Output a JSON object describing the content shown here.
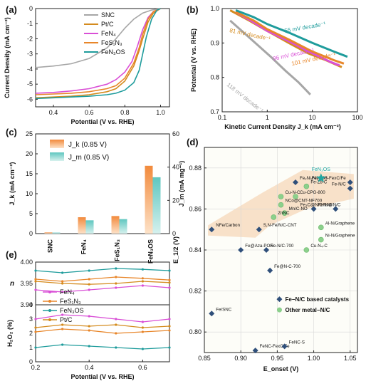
{
  "figure": {
    "panel_labels": [
      "(a)",
      "(b)",
      "(c)",
      "(d)",
      "(e)"
    ]
  },
  "colors": {
    "SNC": "#a6a6a6",
    "PtC": "#d48b1e",
    "FeN4": "#d94fd6",
    "FeS1N3": "#e8862a",
    "FeN3OS": "#1f9c9c",
    "grid": "#d8d8d8",
    "diamond": "#2f4f7a",
    "circle": "#8cd08c",
    "star": "#1fa7a0",
    "region": "#f4c69a"
  },
  "chart_data": [
    {
      "id": "a",
      "type": "line",
      "title": "",
      "xlabel": "Potential (V vs. RHE)",
      "ylabel": "Current Density (mA cm⁻²)",
      "xlim": [
        0.3,
        1.05
      ],
      "ylim": [
        -6.5,
        0
      ],
      "xticks": [
        "0.4",
        "0.6",
        "0.8",
        "1.0"
      ],
      "yticks": [
        "0",
        "-1",
        "-2",
        "-3",
        "-4",
        "-5",
        "-6"
      ],
      "legend": [
        "SNC",
        "Pt/C",
        "FeN₄",
        "FeS₁N₃",
        "FeN₃OS"
      ],
      "legend_position": "top-center",
      "series": [
        {
          "name": "SNC",
          "x": [
            0.3,
            0.4,
            0.5,
            0.6,
            0.7,
            0.75,
            0.8,
            0.85,
            0.9,
            0.95,
            1.0
          ],
          "y": [
            -3.9,
            -3.8,
            -3.65,
            -3.3,
            -2.6,
            -2.0,
            -1.3,
            -0.7,
            -0.3,
            -0.1,
            0.0
          ]
        },
        {
          "name": "Pt/C",
          "x": [
            0.3,
            0.4,
            0.5,
            0.6,
            0.7,
            0.75,
            0.8,
            0.85,
            0.88,
            0.9,
            0.93,
            0.96,
            1.0
          ],
          "y": [
            -5.9,
            -5.85,
            -5.8,
            -5.7,
            -5.5,
            -5.3,
            -4.8,
            -3.8,
            -2.8,
            -2.0,
            -0.9,
            -0.3,
            0.0
          ]
        },
        {
          "name": "FeN₄",
          "x": [
            0.3,
            0.4,
            0.5,
            0.6,
            0.7,
            0.75,
            0.8,
            0.84,
            0.87,
            0.9,
            0.93,
            0.96,
            1.0
          ],
          "y": [
            -5.6,
            -5.55,
            -5.45,
            -5.3,
            -5.0,
            -4.7,
            -4.2,
            -3.5,
            -2.5,
            -1.4,
            -0.6,
            -0.2,
            0.0
          ]
        },
        {
          "name": "FeS₁N₃",
          "x": [
            0.3,
            0.4,
            0.5,
            0.6,
            0.7,
            0.75,
            0.8,
            0.85,
            0.88,
            0.9,
            0.93,
            0.96,
            1.0
          ],
          "y": [
            -5.7,
            -5.65,
            -5.6,
            -5.5,
            -5.3,
            -5.1,
            -4.6,
            -3.6,
            -2.6,
            -1.7,
            -0.7,
            -0.2,
            0.0
          ]
        },
        {
          "name": "FeN₃OS",
          "x": [
            0.3,
            0.4,
            0.5,
            0.6,
            0.7,
            0.75,
            0.8,
            0.85,
            0.88,
            0.9,
            0.92,
            0.95,
            0.98,
            1.0
          ],
          "y": [
            -5.95,
            -5.9,
            -5.85,
            -5.8,
            -5.7,
            -5.6,
            -5.4,
            -4.9,
            -4.1,
            -3.0,
            -1.9,
            -0.7,
            -0.1,
            0.0
          ]
        }
      ]
    },
    {
      "id": "b",
      "type": "line",
      "title": "",
      "xlabel": "Kinetic Current Density J_k (mA cm⁻²)",
      "ylabel": "Potential (V vs. RHE)",
      "xscale": "log",
      "xlim": [
        0.1,
        100
      ],
      "ylim": [
        0.7,
        1.0
      ],
      "xticks": [
        "0.1",
        "1",
        "10",
        "100"
      ],
      "yticks": [
        "1.0",
        "0.9",
        "0.8",
        "0.7"
      ],
      "series": [
        {
          "name": "SNC",
          "x": [
            0.15,
            0.3,
            0.6,
            1.2,
            2.5,
            5,
            9
          ],
          "y": [
            0.965,
            0.93,
            0.895,
            0.86,
            0.82,
            0.785,
            0.75
          ]
        },
        {
          "name": "Pt/C",
          "x": [
            0.15,
            0.4,
            1,
            3,
            8,
            20,
            45
          ],
          "y": [
            0.995,
            0.965,
            0.935,
            0.9,
            0.87,
            0.85,
            0.83
          ]
        },
        {
          "name": "FeN₄",
          "x": [
            0.2,
            0.5,
            1,
            3,
            10,
            25,
            40
          ],
          "y": [
            0.99,
            0.96,
            0.935,
            0.905,
            0.87,
            0.845,
            0.835
          ]
        },
        {
          "name": "FeS₁N₃",
          "x": [
            0.2,
            0.5,
            1,
            3,
            10,
            30,
            50
          ],
          "y": [
            0.99,
            0.965,
            0.94,
            0.91,
            0.875,
            0.85,
            0.84
          ]
        },
        {
          "name": "FeN₃OS",
          "x": [
            0.2,
            0.5,
            1,
            3,
            10,
            30,
            60
          ],
          "y": [
            0.995,
            0.975,
            0.955,
            0.93,
            0.9,
            0.875,
            0.86
          ]
        }
      ],
      "annotations": [
        "55 mV decade⁻¹",
        "81 mV decade⁻¹",
        "96 mV decade⁻¹",
        "101 mV decade⁻¹",
        "118 mV decade⁻¹"
      ]
    },
    {
      "id": "c",
      "type": "bar",
      "title": "",
      "categories": [
        "SNC",
        "FeN₄",
        "FeS₁N₃",
        "FeN₃OS"
      ],
      "ylabel": "J_k (mA cm⁻²)",
      "y2label": "J_m (mA mg⁻¹)",
      "ylim": [
        0,
        25
      ],
      "y2lim": [
        0,
        60
      ],
      "yticks": [
        "0",
        "5",
        "10",
        "15",
        "20",
        "25"
      ],
      "y2ticks": [
        "0",
        "20",
        "40",
        "60"
      ],
      "legend": [
        "J_k (0.85 V)",
        "J_m (0.85 V)"
      ],
      "series": [
        {
          "name": "J_k (0.85 V)",
          "axis": "left",
          "values": [
            0.3,
            4.1,
            4.4,
            17.0
          ]
        },
        {
          "name": "J_m (0.85 V)",
          "axis": "right",
          "values": [
            0.6,
            8.0,
            8.7,
            33.9
          ]
        }
      ]
    },
    {
      "id": "d",
      "type": "scatter",
      "title": "",
      "xlabel": "E_onset (V)",
      "ylabel": "E_1/2 (V)",
      "xlim": [
        0.85,
        1.06
      ],
      "ylim": [
        0.79,
        0.89
      ],
      "xticks": [
        "0.85",
        "0.90",
        "0.95",
        "1.00",
        "1.05"
      ],
      "yticks": [
        "0.80",
        "0.82",
        "0.84",
        "0.86",
        "0.88"
      ],
      "highlight": {
        "label": "FeN₃OS",
        "x": 1.01,
        "y": 0.875
      },
      "points": [
        {
          "label": "FeNC-S-FexC/Fe",
          "ref": "s1",
          "x": 1.05,
          "y": 0.873,
          "kind": "diamond"
        },
        {
          "label": "Fe-N/C",
          "ref": "s3",
          "x": 1.05,
          "y": 0.87,
          "kind": "diamond"
        },
        {
          "label": "Fe₂Ni₂Ni₂-900",
          "ref": "s2",
          "x": 0.975,
          "y": 0.873,
          "kind": "diamond"
        },
        {
          "label": "Fe-Z8-C",
          "ref": "s4",
          "x": 0.99,
          "y": 0.871,
          "kind": "circle"
        },
        {
          "label": "Cu-N-C",
          "ref": "s6",
          "x": 0.955,
          "y": 0.866,
          "kind": "circle"
        },
        {
          "label": "Cu-CPG-800",
          "ref": "s5",
          "x": 0.975,
          "y": 0.866,
          "kind": "circle"
        },
        {
          "label": "NCo@CNT-NF700",
          "ref": "s10",
          "x": 0.955,
          "y": 0.862,
          "kind": "circle"
        },
        {
          "label": "Mn/C-NO",
          "ref": "s9",
          "x": 0.96,
          "y": 0.858,
          "kind": "circle"
        },
        {
          "label": "ZnNC",
          "ref": "s11",
          "x": 0.945,
          "y": 0.856,
          "kind": "circle"
        },
        {
          "label": "FeNx@N/C",
          "ref": "s8",
          "x": 1.0,
          "y": 0.86,
          "kind": "diamond"
        },
        {
          "label": "Fe₃C@N/C-900",
          "ref": "s7",
          "x": 1.03,
          "y": 0.86,
          "kind": "diamond"
        },
        {
          "label": "NFe/Carbon",
          "ref": "s14",
          "x": 0.86,
          "y": 0.85,
          "kind": "diamond"
        },
        {
          "label": "S,N-Fe/N/C-CNT",
          "ref": "s13",
          "x": 0.925,
          "y": 0.85,
          "kind": "diamond"
        },
        {
          "label": "Al-N/Graphene",
          "ref": "s12",
          "x": 1.01,
          "y": 0.851,
          "kind": "circle"
        },
        {
          "label": "Ni-N/Graphene",
          "ref": "s15",
          "x": 1.01,
          "y": 0.845,
          "kind": "circle"
        },
        {
          "label": "Fe@Aza-PON",
          "ref": "s18",
          "x": 0.9,
          "y": 0.84,
          "kind": "diamond"
        },
        {
          "label": "Fe-N/C-700",
          "ref": "s17",
          "x": 0.935,
          "y": 0.84,
          "kind": "diamond"
        },
        {
          "label": "Cu-N₄-C",
          "ref": "s16",
          "x": 0.99,
          "y": 0.84,
          "kind": "circle"
        },
        {
          "label": "Fe@N-C-700",
          "ref": "s19",
          "x": 0.94,
          "y": 0.83,
          "kind": "diamond"
        },
        {
          "label": "Fe/SNC",
          "ref": "s1",
          "x": 0.86,
          "y": 0.809,
          "kind": "diamond"
        },
        {
          "label": "FeNC-FexC/Fe",
          "ref": "s1",
          "x": 0.92,
          "y": 0.791,
          "kind": "diamond"
        },
        {
          "label": "FeNC-S",
          "ref": "s1",
          "x": 0.96,
          "y": 0.793,
          "kind": "diamond"
        }
      ],
      "legend": [
        "Fe−N/C based catalysts",
        "Other metal−N/C"
      ],
      "legend_position": "bottom-right"
    },
    {
      "id": "e",
      "type": "line",
      "title": "",
      "xlabel": "Potential (V vs. RHE)",
      "x": [
        0.2,
        0.3,
        0.4,
        0.5,
        0.6,
        0.7
      ],
      "xticks": [
        "0.2",
        "0.4",
        "0.6"
      ],
      "top": {
        "ylabel": "n",
        "ylim": [
          3.9,
          4.0
        ],
        "yticks": [
          "4.00",
          "3.95",
          "3.90"
        ],
        "series": [
          {
            "name": "FeN₄",
            "values": [
              3.935,
              3.93,
              3.935,
              3.94,
              3.945,
              3.94
            ]
          },
          {
            "name": "FeS₁N₃",
            "values": [
              3.96,
              3.955,
              3.96,
              3.965,
              3.962,
              3.958
            ]
          },
          {
            "name": "FeN₃OS",
            "values": [
              3.98,
              3.975,
              3.98,
              3.985,
              3.983,
              3.98
            ]
          },
          {
            "name": "Pt/C",
            "values": [
              3.955,
              3.95,
              3.948,
              3.95,
              3.955,
              3.952
            ]
          }
        ]
      },
      "bottom": {
        "ylabel": "H₂O₂ (%)",
        "ylim": [
          0,
          4
        ],
        "yticks": [
          "0",
          "1",
          "2",
          "3",
          "4"
        ],
        "series": [
          {
            "name": "FeN₄",
            "values": [
              3.0,
              3.3,
              3.2,
              3.0,
              2.8,
              3.0
            ]
          },
          {
            "name": "FeS₁N₃",
            "values": [
              2.1,
              2.3,
              2.2,
              2.0,
              2.1,
              2.2
            ]
          },
          {
            "name": "FeN₃OS",
            "values": [
              1.0,
              1.2,
              1.1,
              1.0,
              0.9,
              1.0
            ]
          },
          {
            "name": "Pt/C",
            "values": [
              2.4,
              2.6,
              2.5,
              2.6,
              2.4,
              2.5
            ]
          }
        ]
      },
      "legend": [
        "FeN₄",
        "FeS₁N₃",
        "FeN₃OS",
        "Pt/C"
      ]
    }
  ]
}
